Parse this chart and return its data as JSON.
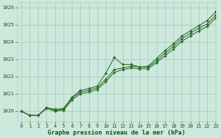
{
  "title": "Graphe pression niveau de la mer (hPa)",
  "bg_color": "#cde8dc",
  "grid_color": "#a8ccbc",
  "line_color": "#2d6e2d",
  "text_color": "#1a4d1a",
  "xlim": [
    -0.5,
    23
  ],
  "ylim": [
    1019.4,
    1026.3
  ],
  "yticks": [
    1020,
    1021,
    1022,
    1023,
    1024,
    1025,
    1026
  ],
  "xticks": [
    0,
    1,
    2,
    3,
    4,
    5,
    6,
    7,
    8,
    9,
    10,
    11,
    12,
    13,
    14,
    15,
    16,
    17,
    18,
    19,
    20,
    21,
    22,
    23
  ],
  "series1": [
    1020.0,
    1019.75,
    1019.75,
    1020.2,
    1020.1,
    1020.15,
    1020.8,
    1021.2,
    1021.3,
    1021.45,
    1022.2,
    1023.1,
    1022.7,
    1022.7,
    1022.55,
    1022.6,
    1023.05,
    1023.5,
    1023.9,
    1024.35,
    1024.65,
    1024.95,
    1025.25,
    1025.75
  ],
  "series2": [
    1020.0,
    1019.75,
    1019.75,
    1020.2,
    1020.05,
    1020.1,
    1020.75,
    1021.1,
    1021.2,
    1021.35,
    1021.85,
    1022.4,
    1022.5,
    1022.6,
    1022.55,
    1022.55,
    1022.9,
    1023.35,
    1023.75,
    1024.2,
    1024.5,
    1024.8,
    1025.05,
    1025.55
  ],
  "series3": [
    1020.0,
    1019.75,
    1019.75,
    1020.15,
    1020.0,
    1020.05,
    1020.65,
    1021.0,
    1021.1,
    1021.25,
    1021.7,
    1022.25,
    1022.4,
    1022.5,
    1022.45,
    1022.45,
    1022.8,
    1023.2,
    1023.6,
    1024.05,
    1024.35,
    1024.65,
    1024.9,
    1025.4
  ],
  "marker_size": 2.0,
  "line_width": 0.8,
  "tick_fontsize": 5.0,
  "xlabel_fontsize": 6.2,
  "figsize": [
    3.2,
    2.0
  ],
  "dpi": 100
}
